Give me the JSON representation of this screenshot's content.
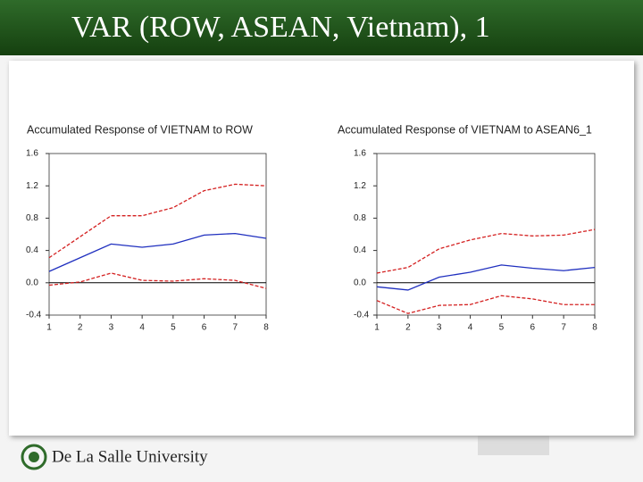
{
  "title": "VAR (ROW, ASEAN, Vietnam), 1",
  "footer": "De La Salle University",
  "chart_data": [
    {
      "type": "line",
      "title": "Accumulated Response of VIETNAM to ROW",
      "x": [
        1,
        2,
        3,
        4,
        5,
        6,
        7,
        8
      ],
      "xlim": [
        1,
        8
      ],
      "xticks": [
        1,
        2,
        3,
        4,
        5,
        6,
        7,
        8
      ],
      "ylim": [
        -0.4,
        1.6
      ],
      "yticks": [
        -0.4,
        {
          "value": 0,
          "label": "0.0"
        },
        0.4,
        0.8,
        1.2,
        1.6
      ],
      "zero_line": true,
      "grid": false,
      "series": [
        {
          "color": "#1f2fbf",
          "dashed": false,
          "values": [
            0.14,
            0.31,
            0.48,
            0.44,
            0.48,
            0.59,
            0.61,
            0.55
          ]
        },
        {
          "color": "#d42020",
          "dashed": true,
          "values": [
            0.31,
            0.57,
            0.83,
            0.83,
            0.93,
            1.14,
            1.22,
            1.2
          ]
        },
        {
          "color": "#d42020",
          "dashed": true,
          "values": [
            -0.03,
            0.01,
            0.12,
            0.03,
            0.02,
            0.05,
            0.03,
            -0.07
          ]
        }
      ]
    },
    {
      "type": "line",
      "title": "Accumulated Response of VIETNAM to ASEAN6_1",
      "x": [
        1,
        2,
        3,
        4,
        5,
        6,
        7,
        8
      ],
      "xlim": [
        1,
        8
      ],
      "xticks": [
        1,
        2,
        3,
        4,
        5,
        6,
        7,
        8
      ],
      "ylim": [
        -0.4,
        1.6
      ],
      "yticks": [
        -0.4,
        {
          "value": 0,
          "label": "0.0"
        },
        0.4,
        0.8,
        1.2,
        1.6
      ],
      "zero_line": true,
      "grid": false,
      "series": [
        {
          "color": "#1f2fbf",
          "dashed": false,
          "values": [
            -0.05,
            -0.09,
            0.07,
            0.13,
            0.22,
            0.18,
            0.15,
            0.19
          ]
        },
        {
          "color": "#d42020",
          "dashed": true,
          "values": [
            0.12,
            0.19,
            0.42,
            0.53,
            0.61,
            0.58,
            0.59,
            0.66
          ]
        },
        {
          "color": "#d42020",
          "dashed": true,
          "values": [
            -0.22,
            -0.38,
            -0.28,
            -0.27,
            -0.16,
            -0.2,
            -0.27,
            -0.27
          ]
        }
      ]
    }
  ]
}
